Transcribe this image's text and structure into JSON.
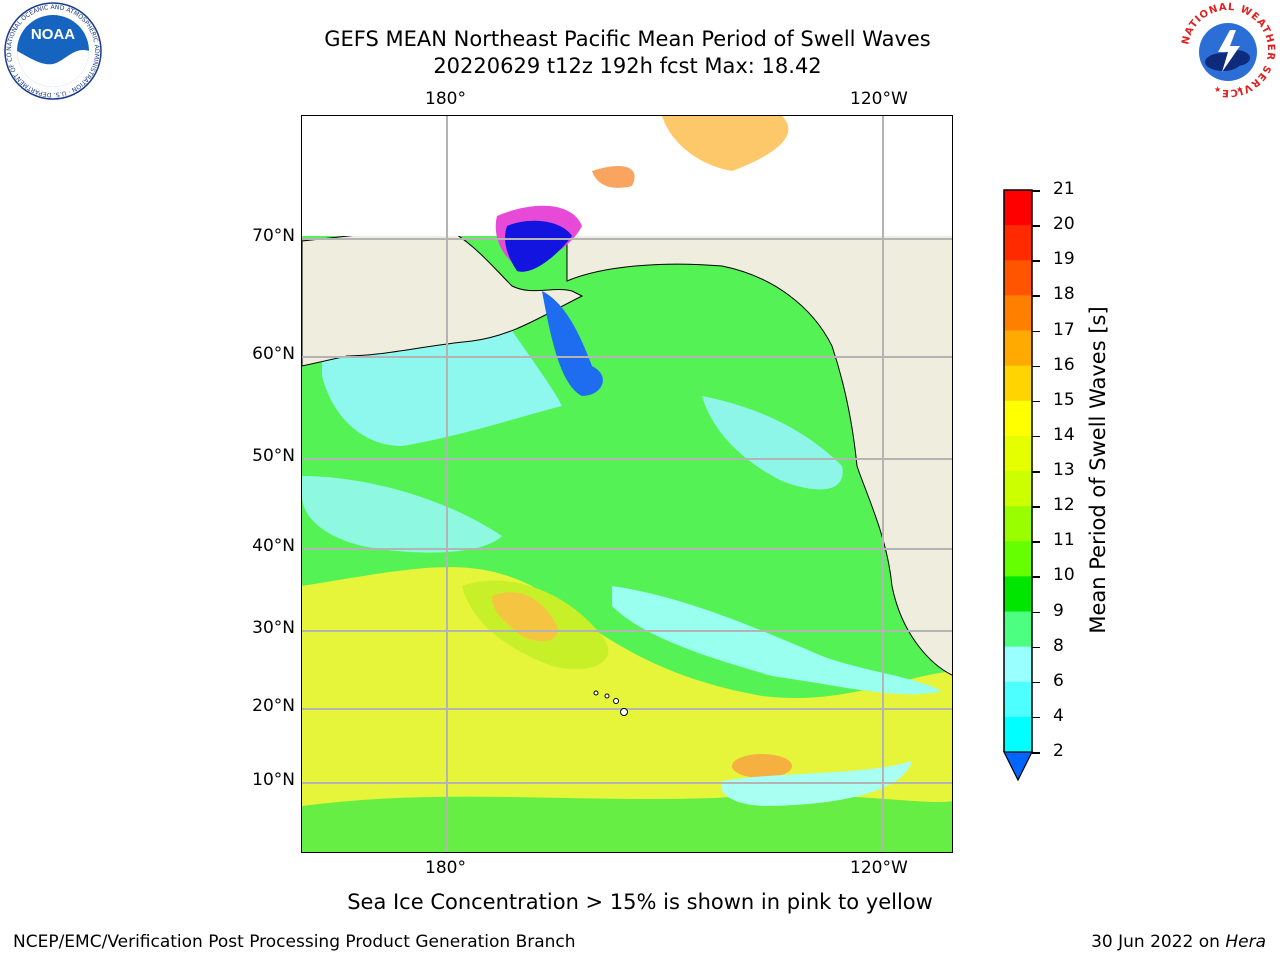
{
  "title": {
    "line1": "GEFS MEAN Northeast Pacific Mean Period of Swell Waves",
    "line2": "20220629 t12z 192h fcst   Max: 18.42"
  },
  "logos": {
    "noaa_text": "NOAA",
    "noaa_ring": "NATIONAL OCEANIC AND ATMOSPHERIC ADMINISTRATION · U.S. DEPARTMENT OF COMMERCE",
    "nws_ring": "NATIONAL WEATHER SERVICE"
  },
  "map": {
    "lon_labels": [
      "180°",
      "120°W"
    ],
    "lat_labels": [
      "70°N",
      "60°N",
      "50°N",
      "40°N",
      "30°N",
      "20°N",
      "10°N"
    ],
    "grid": true
  },
  "colorbar": {
    "label": "Mean Period of Swell Waves [s]",
    "ticks": [
      "21",
      "20",
      "19",
      "18",
      "17",
      "16",
      "15",
      "14",
      "13",
      "12",
      "11",
      "10",
      "9",
      "8",
      "6",
      "4",
      "2"
    ],
    "colors": [
      "#ff0000",
      "#ff2a00",
      "#ff5500",
      "#ff8000",
      "#ffaa00",
      "#ffd400",
      "#ffff00",
      "#e6ff00",
      "#ccff00",
      "#99ff00",
      "#66ff00",
      "#00e600",
      "#4dff80",
      "#99ffff",
      "#4dffff",
      "#00ffff",
      "#00bfff",
      "#0066ff"
    ]
  },
  "note": "Sea Ice Concentration > 15% is shown in pink to yellow",
  "footer": {
    "left": "NCEP/EMC/Verification Post Processing Product Generation Branch",
    "right_date": "30 Jun 2022 on ",
    "right_machine": "Hera"
  }
}
